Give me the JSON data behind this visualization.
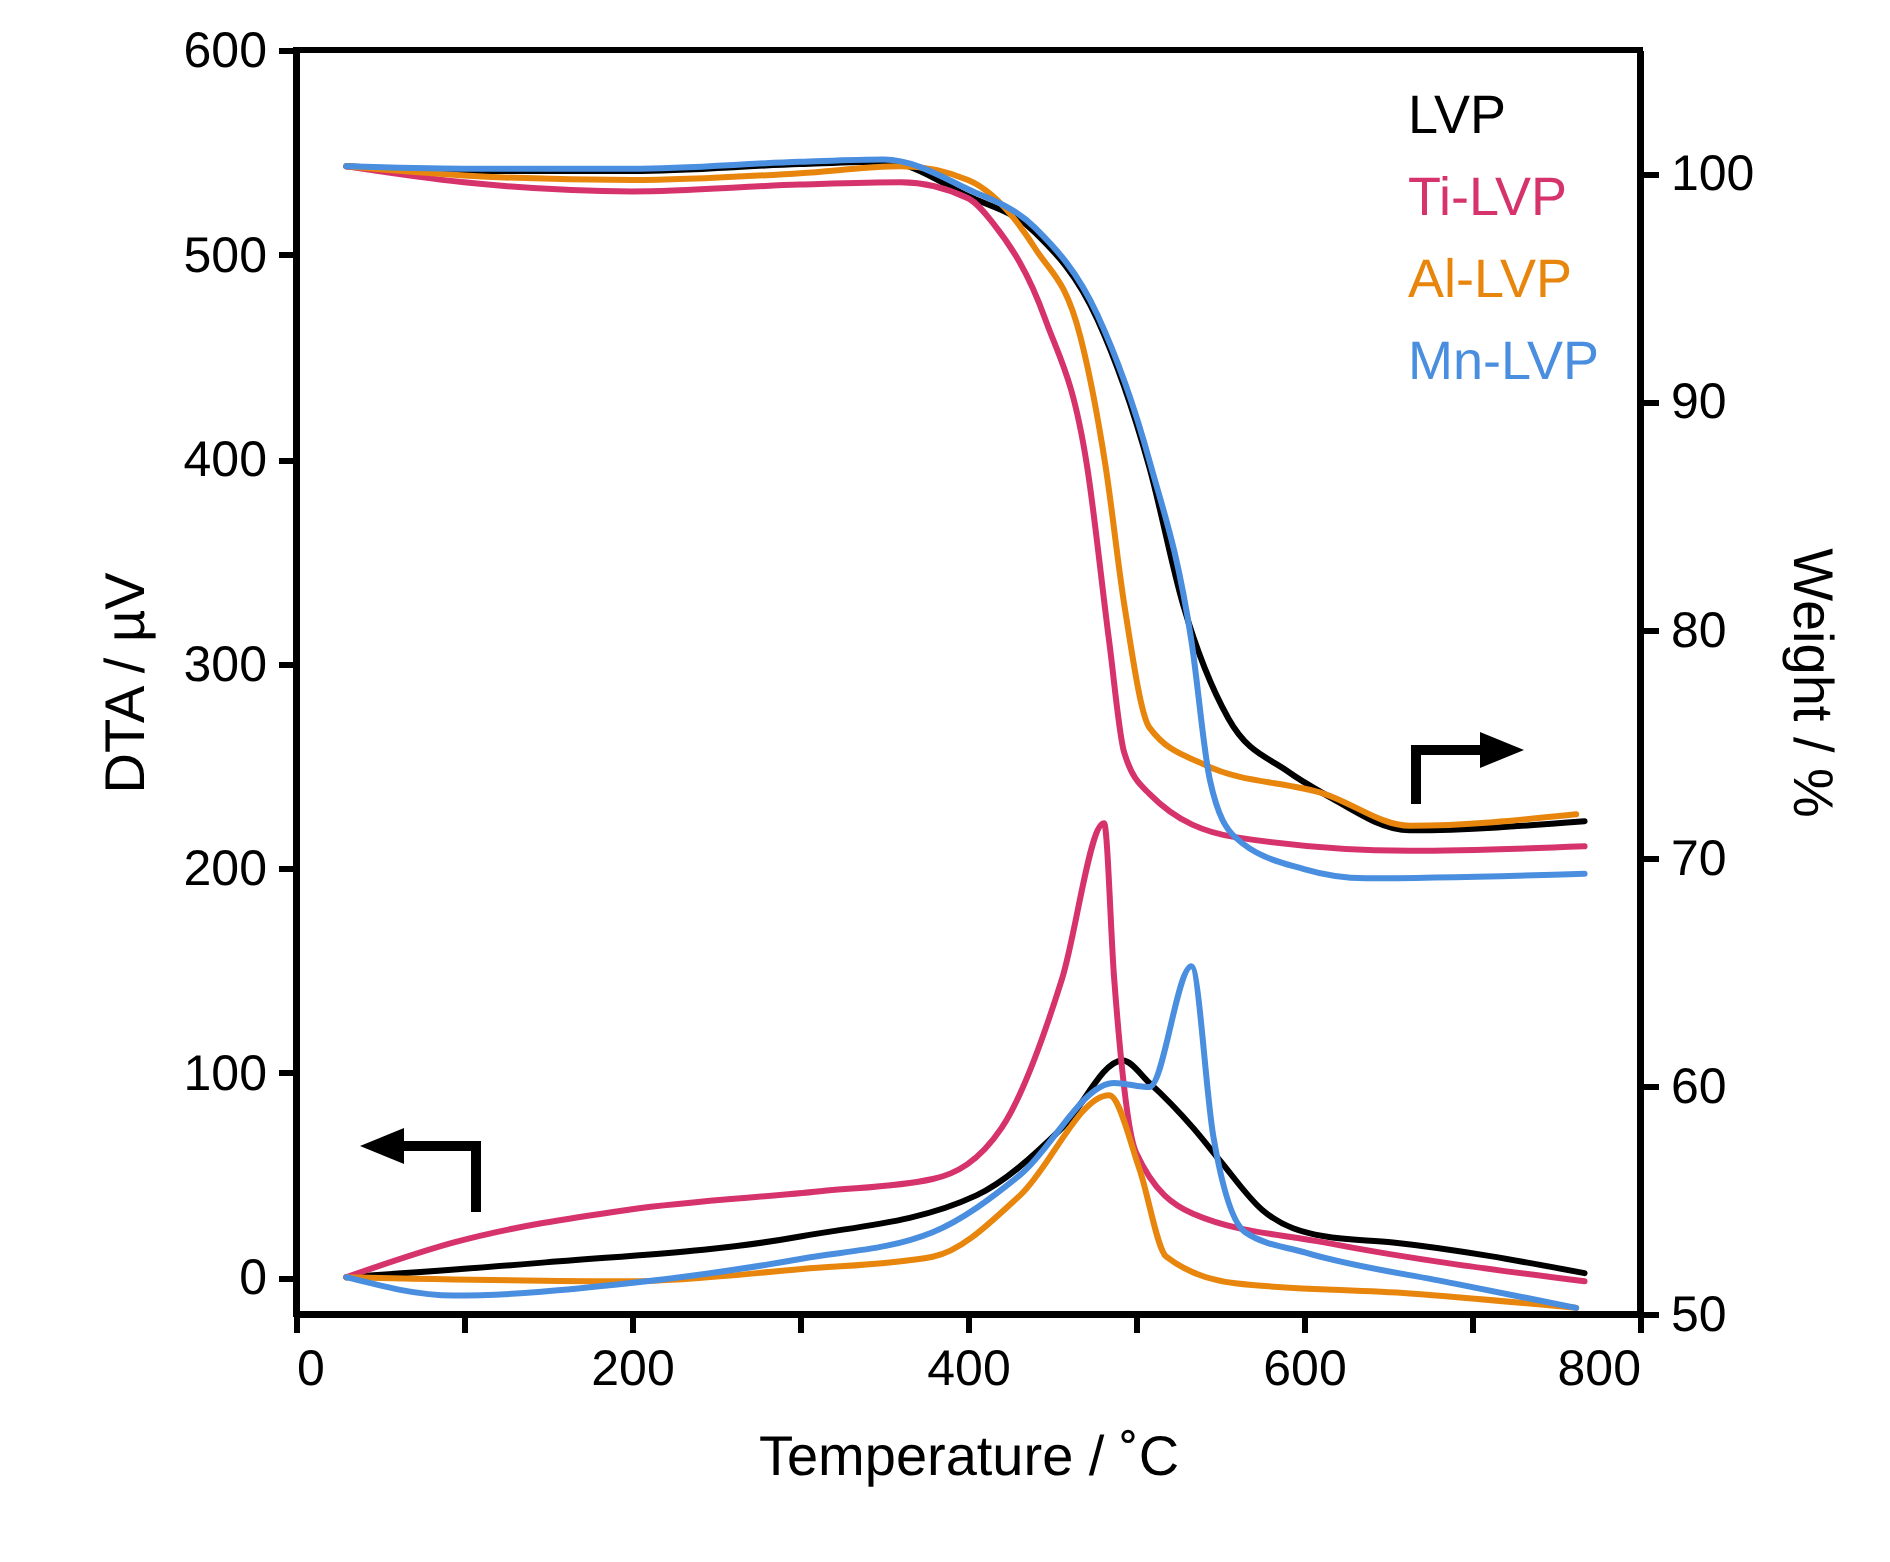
{
  "chart_data": {
    "type": "line",
    "xlabel": "Temperature / ˚C",
    "ylabel": "DTA / µV",
    "y2label": "Weight  / %",
    "xlim": [
      0,
      800
    ],
    "ylim": [
      -18,
      600
    ],
    "y2lim": [
      50,
      105.4
    ],
    "xticks": [
      0,
      {
        "value": 100,
        "label": null
      },
      200,
      {
        "value": 300,
        "label": null
      },
      400,
      {
        "value": 500,
        "label": null
      },
      600,
      {
        "value": 700,
        "label": null
      },
      800
    ],
    "yticks": [
      0,
      100,
      200,
      300,
      400,
      500,
      600
    ],
    "y2ticks": [
      50,
      60,
      70,
      80,
      90,
      100
    ],
    "legend": "top right",
    "grid": false,
    "line_style": "solid",
    "series": [
      {
        "name": "LVP",
        "color": "#000000",
        "axis": "y2",
        "x": [
          30,
          100,
          200,
          300,
          350,
          400,
          440,
          477,
          508,
          528,
          555,
          590,
          612,
          663,
          767
        ],
        "values": [
          100.3,
          100.1,
          100.1,
          100.4,
          100.5,
          99.0,
          97.4,
          93.6,
          87.1,
          81.1,
          76.1,
          73.8,
          72.8,
          71.2,
          71.6
        ]
      },
      {
        "name": "Ti-LVP",
        "color": "#d6336c",
        "axis": "y2",
        "x": [
          30,
          100,
          200,
          300,
          360,
          400,
          415,
          446,
          471,
          484,
          493,
          508,
          559,
          663,
          767
        ],
        "values": [
          100.3,
          99.6,
          99.2,
          99.5,
          99.6,
          98.9,
          97.8,
          93.6,
          87.1,
          79.5,
          74.6,
          72.8,
          70.9,
          70.3,
          70.5
        ]
      },
      {
        "name": "Al-LVP",
        "color": "#e8850c",
        "axis": "y2",
        "x": [
          30,
          100,
          200,
          300,
          360,
          400,
          440,
          467,
          482,
          493,
          508,
          540,
          612,
          663,
          762
        ],
        "values": [
          100.3,
          99.9,
          99.7,
          100.0,
          100.3,
          99.7,
          96.7,
          92.8,
          87.1,
          81.1,
          75.7,
          74.1,
          72.8,
          71.4,
          71.9
        ]
      },
      {
        "name": "Mn-LVP",
        "color": "#4a8ee0",
        "axis": "y2",
        "x": [
          30,
          100,
          200,
          300,
          350,
          400,
          440,
          477,
          508,
          533,
          544,
          559,
          600,
          637,
          767
        ],
        "values": [
          100.3,
          100.2,
          100.2,
          100.5,
          100.6,
          99.3,
          97.6,
          93.8,
          87.4,
          79.5,
          73.4,
          70.9,
          69.5,
          69.1,
          69.3
        ]
      },
      {
        "color": "#000000",
        "axis": "y",
        "x": [
          30,
          145,
          301,
          405,
          456,
          492,
          508,
          534,
          550,
          575,
          612,
          653,
          767
        ],
        "values": [
          0,
          7,
          20,
          40,
          73,
          106,
          95,
          73,
          57,
          33,
          20,
          17,
          2
        ]
      },
      {
        "color": "#d6336c",
        "axis": "y",
        "x": [
          30,
          94,
          198,
          312,
          379,
          420,
          456,
          481,
          487,
          500,
          534,
          612,
          767
        ],
        "values": [
          0,
          17,
          33,
          42,
          48,
          73,
          146,
          222,
          146,
          61,
          31,
          17,
          -2
        ]
      },
      {
        "color": "#e8850c",
        "axis": "y",
        "x": [
          30,
          198,
          301,
          379,
          431,
          484,
          502,
          518,
          559,
          663,
          762
        ],
        "values": [
          0,
          -2,
          4,
          10,
          40,
          89,
          53,
          10,
          -3,
          -8,
          -15
        ]
      },
      {
        "color": "#4a8ee0",
        "axis": "y",
        "x": [
          30,
          94,
          198,
          301,
          379,
          431,
          487,
          508,
          533,
          546,
          565,
          601,
          689,
          762
        ],
        "values": [
          0,
          -9,
          -3,
          9,
          22,
          50,
          95,
          93,
          152,
          69,
          22,
          12,
          -3,
          -15
        ]
      }
    ]
  }
}
